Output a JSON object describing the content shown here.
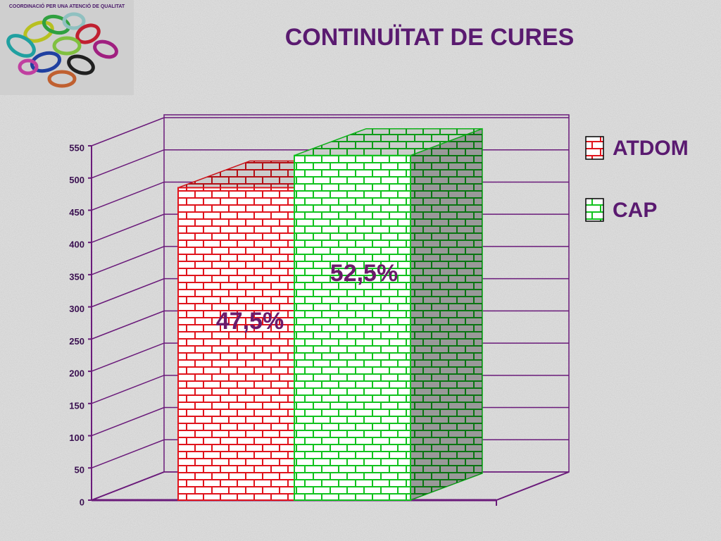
{
  "logo_text": "COORDINACIÓ PER UNA ATENCIÓ DE QUALITAT",
  "chart_data": {
    "type": "bar3d",
    "title": "CONTINUÏTAT DE CURES",
    "categories": [
      "ATDOM",
      "CAP"
    ],
    "series": [
      {
        "name": "ATDOM",
        "color": "#e0141c"
      },
      {
        "name": "CAP",
        "color": "#12c21e"
      }
    ],
    "values": [
      485,
      535
    ],
    "annotations": [
      "47,5%",
      "52,5%"
    ],
    "ylim": [
      0,
      550
    ],
    "yticks": [
      0,
      50,
      100,
      150,
      200,
      250,
      300,
      350,
      400,
      450,
      500,
      550
    ],
    "grid": true,
    "legend": "right"
  }
}
